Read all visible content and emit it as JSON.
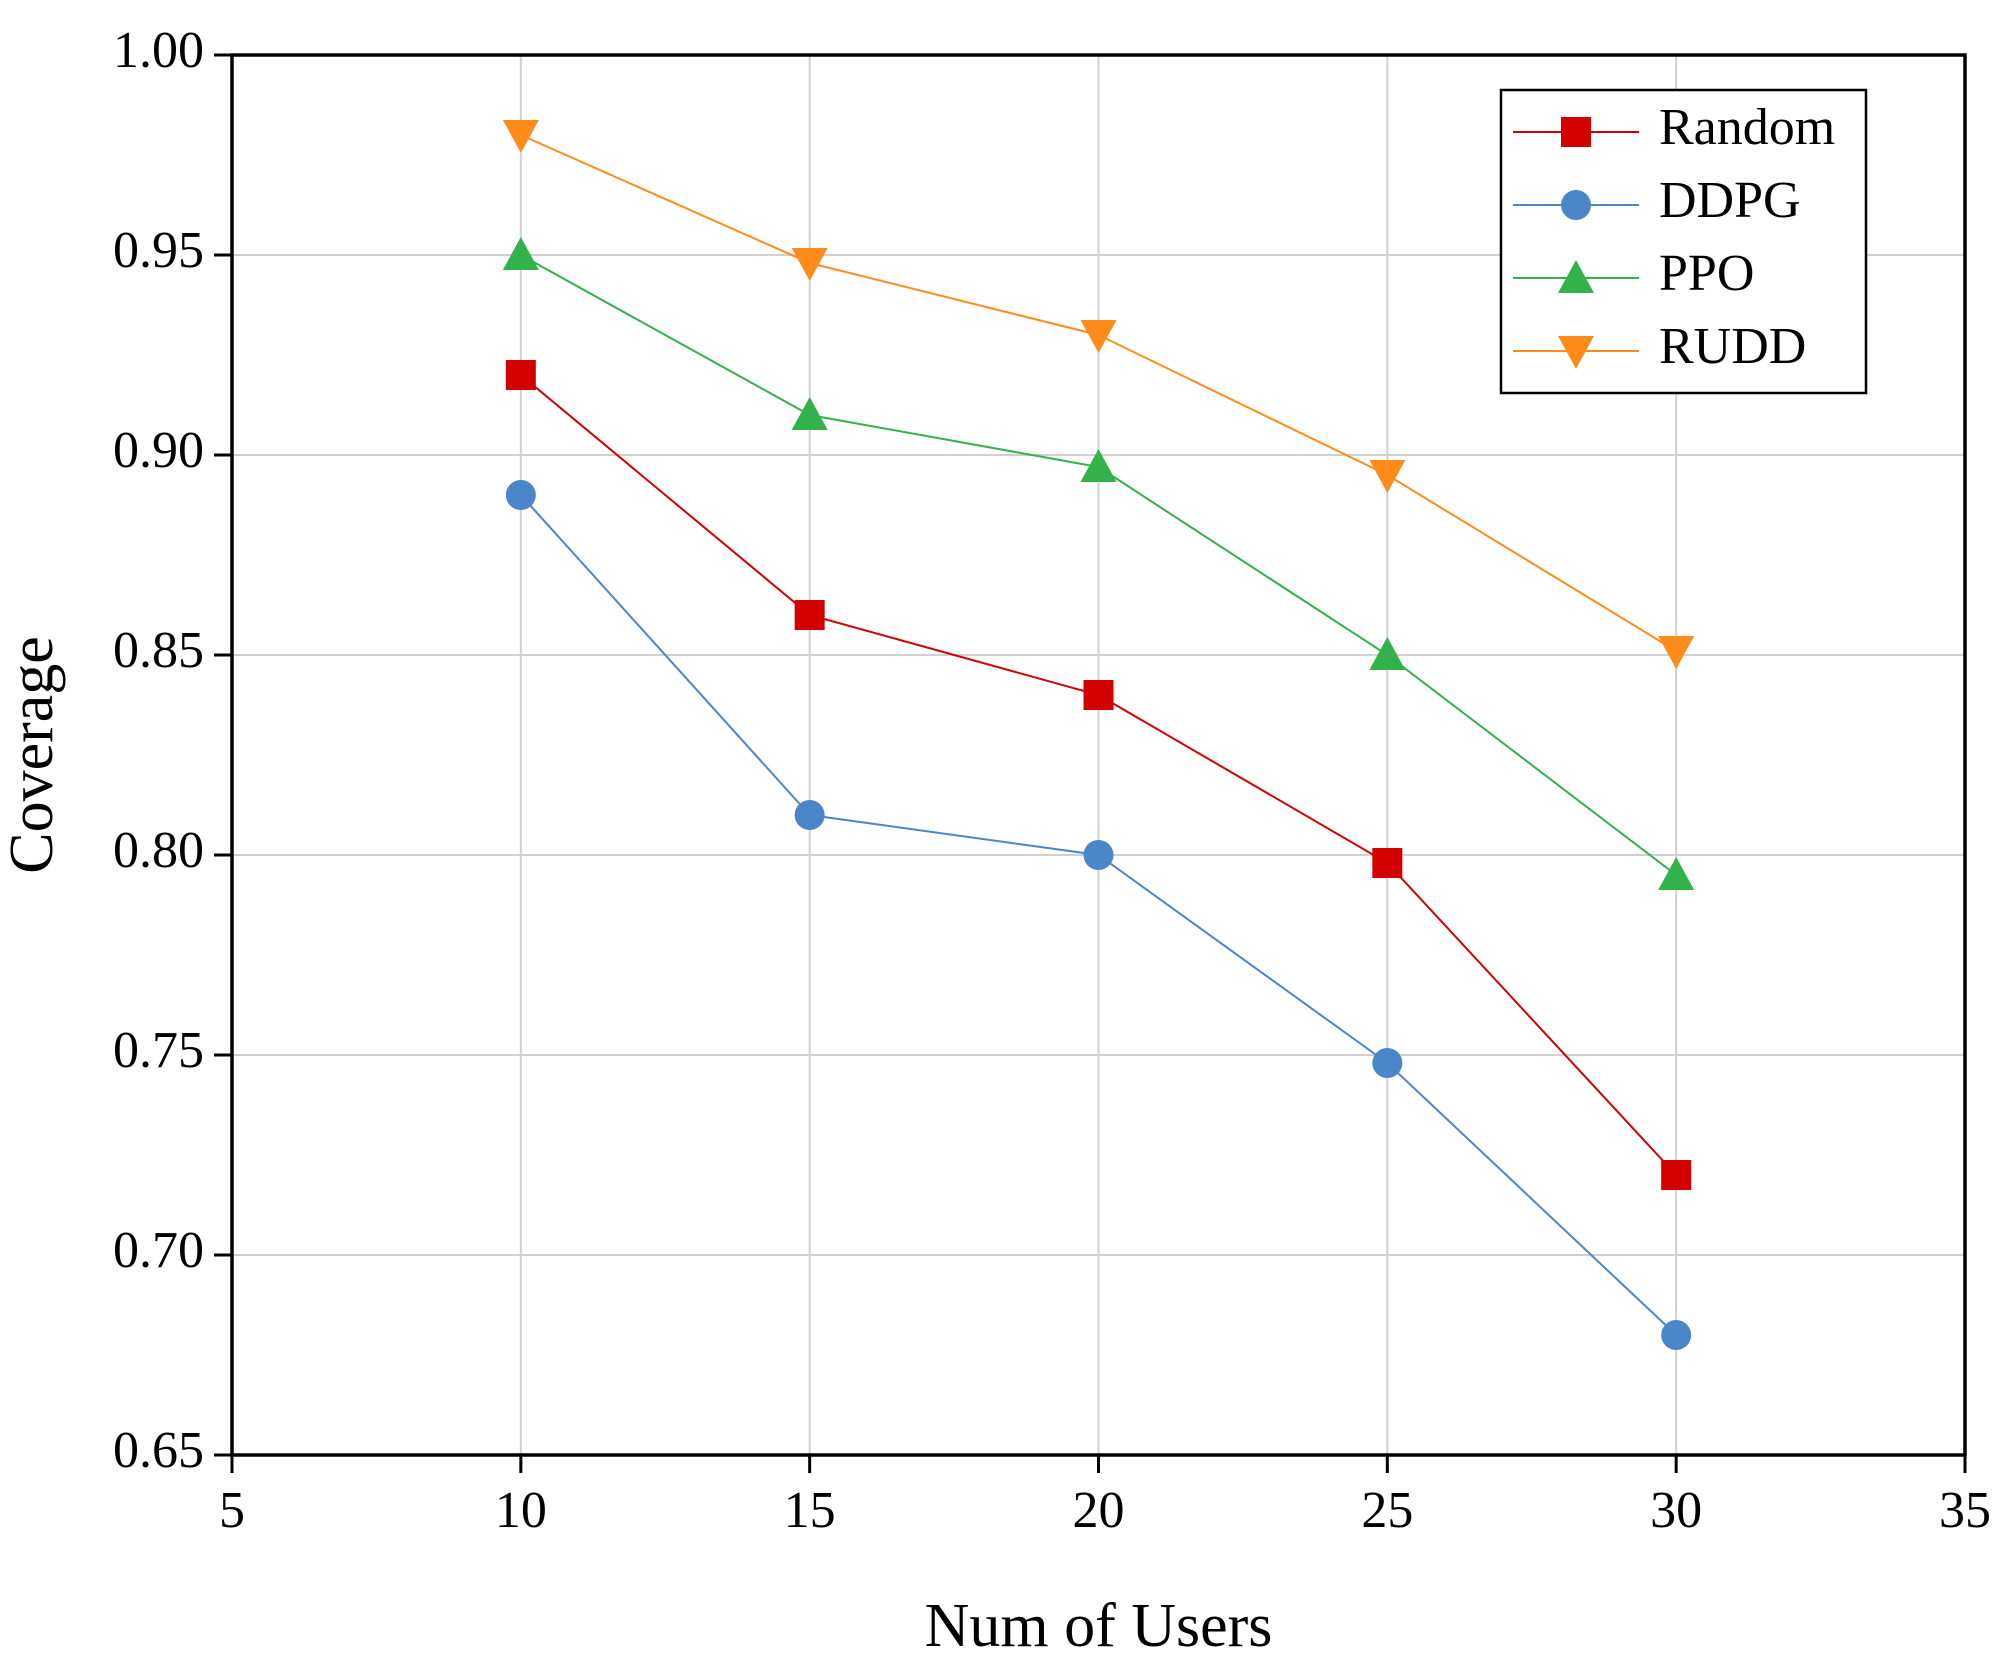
{
  "chart_data": {
    "type": "line",
    "x_label": "Num of Users",
    "y_label": "Coverage",
    "x": [
      10,
      15,
      20,
      25,
      30
    ],
    "series": [
      {
        "name": "Random",
        "color": "#d40000",
        "marker": "square",
        "values": [
          0.92,
          0.86,
          0.84,
          0.798,
          0.72
        ]
      },
      {
        "name": "DDPG",
        "color": "#4a86c8",
        "marker": "circle",
        "values": [
          0.89,
          0.81,
          0.8,
          0.748,
          0.68
        ]
      },
      {
        "name": "PPO",
        "color": "#33b14a",
        "marker": "triangle-up",
        "values": [
          0.95,
          0.91,
          0.897,
          0.85,
          0.795
        ]
      },
      {
        "name": "RUDD",
        "color": "#ff8c1a",
        "marker": "triangle-down",
        "values": [
          0.98,
          0.948,
          0.93,
          0.895,
          0.851
        ]
      }
    ],
    "xlim": [
      5,
      35
    ],
    "xticks": [
      5,
      10,
      15,
      20,
      25,
      30,
      35
    ],
    "ylim": [
      0.65,
      1.0
    ],
    "yticks": [
      0.65,
      {
        "value": 0.7,
        "label": "0.70"
      },
      0.75,
      {
        "value": 0.8,
        "label": "0.80"
      },
      0.85,
      {
        "value": 0.9,
        "label": "0.90"
      },
      0.95,
      {
        "value": 1.0,
        "label": "1.00"
      }
    ],
    "grid": true,
    "legend": "upper right"
  }
}
